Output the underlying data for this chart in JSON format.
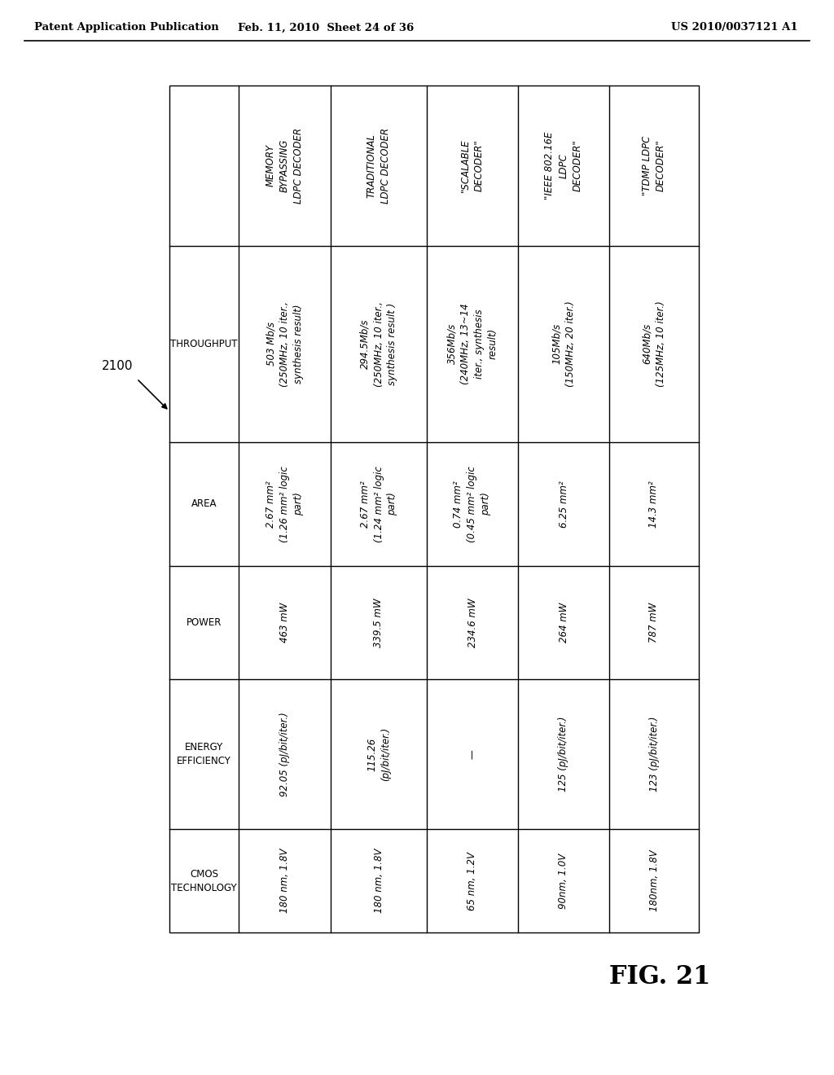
{
  "page_header_left": "Patent Application Publication",
  "page_header_mid": "Feb. 11, 2010  Sheet 24 of 36",
  "page_header_right": "US 2010/0037121 A1",
  "figure_label": "FIG. 21",
  "label_2100": "2100",
  "col_headers": [
    "MEMORY\nBYPASSING\nLDPC DECODER",
    "TRADITIONAL\nLDPC DECODER",
    "\"SCALABLE\nDECODER\"",
    "\"IEEE 802.16E\nLDPC\nDECODER\"",
    "\"TDMP LDPC\nDECODER\""
  ],
  "row_headers": [
    "THROUGHPUT",
    "AREA",
    "POWER",
    "ENERGY\nEFFICIENCY",
    "CMOS\nTECHNOLOGY"
  ],
  "cells": [
    [
      "503 Mb/s\n(250MHz, 10 iter.,\nsynthesis result)",
      "2.67 mm²\n(1.26 mm² logic\npart)",
      "463 mW",
      "92.05 (pJ/bit/iter.)",
      "180 nm, 1.8V"
    ],
    [
      "294.5Mb/s\n(250MHz, 10 iter.,\nsynthesis result )",
      "2.67 mm²\n(1.24 mm² logic\npart)",
      "339.5 mW",
      "115.26\n(pJ/bit/iter.)",
      "180 nm, 1.8V"
    ],
    [
      "356Mb/s\n(240MHz, 13~14\niter., synthesis\nresult)",
      "0.74 mm²\n(0.45 mm² logic\npart)",
      "234.6 mW",
      "—",
      "65 nm, 1.2V"
    ],
    [
      "105Mb/s\n(150MHz, 20 iter.)",
      "6.25 mm²",
      "264 mW",
      "125 (pJ/bit/iter.)",
      "90nm, 1.0V"
    ],
    [
      "640Mb/s\n(125MHz, 10 iter.)",
      "14.3 mm²",
      "787 mW",
      "123 (pJ/bit/iter.)",
      "180nm, 1.8V"
    ]
  ],
  "background_color": "#ffffff",
  "text_color": "#000000",
  "header_font_size": 8.5,
  "cell_font_size": 8.5,
  "row_label_font_size": 8.5
}
